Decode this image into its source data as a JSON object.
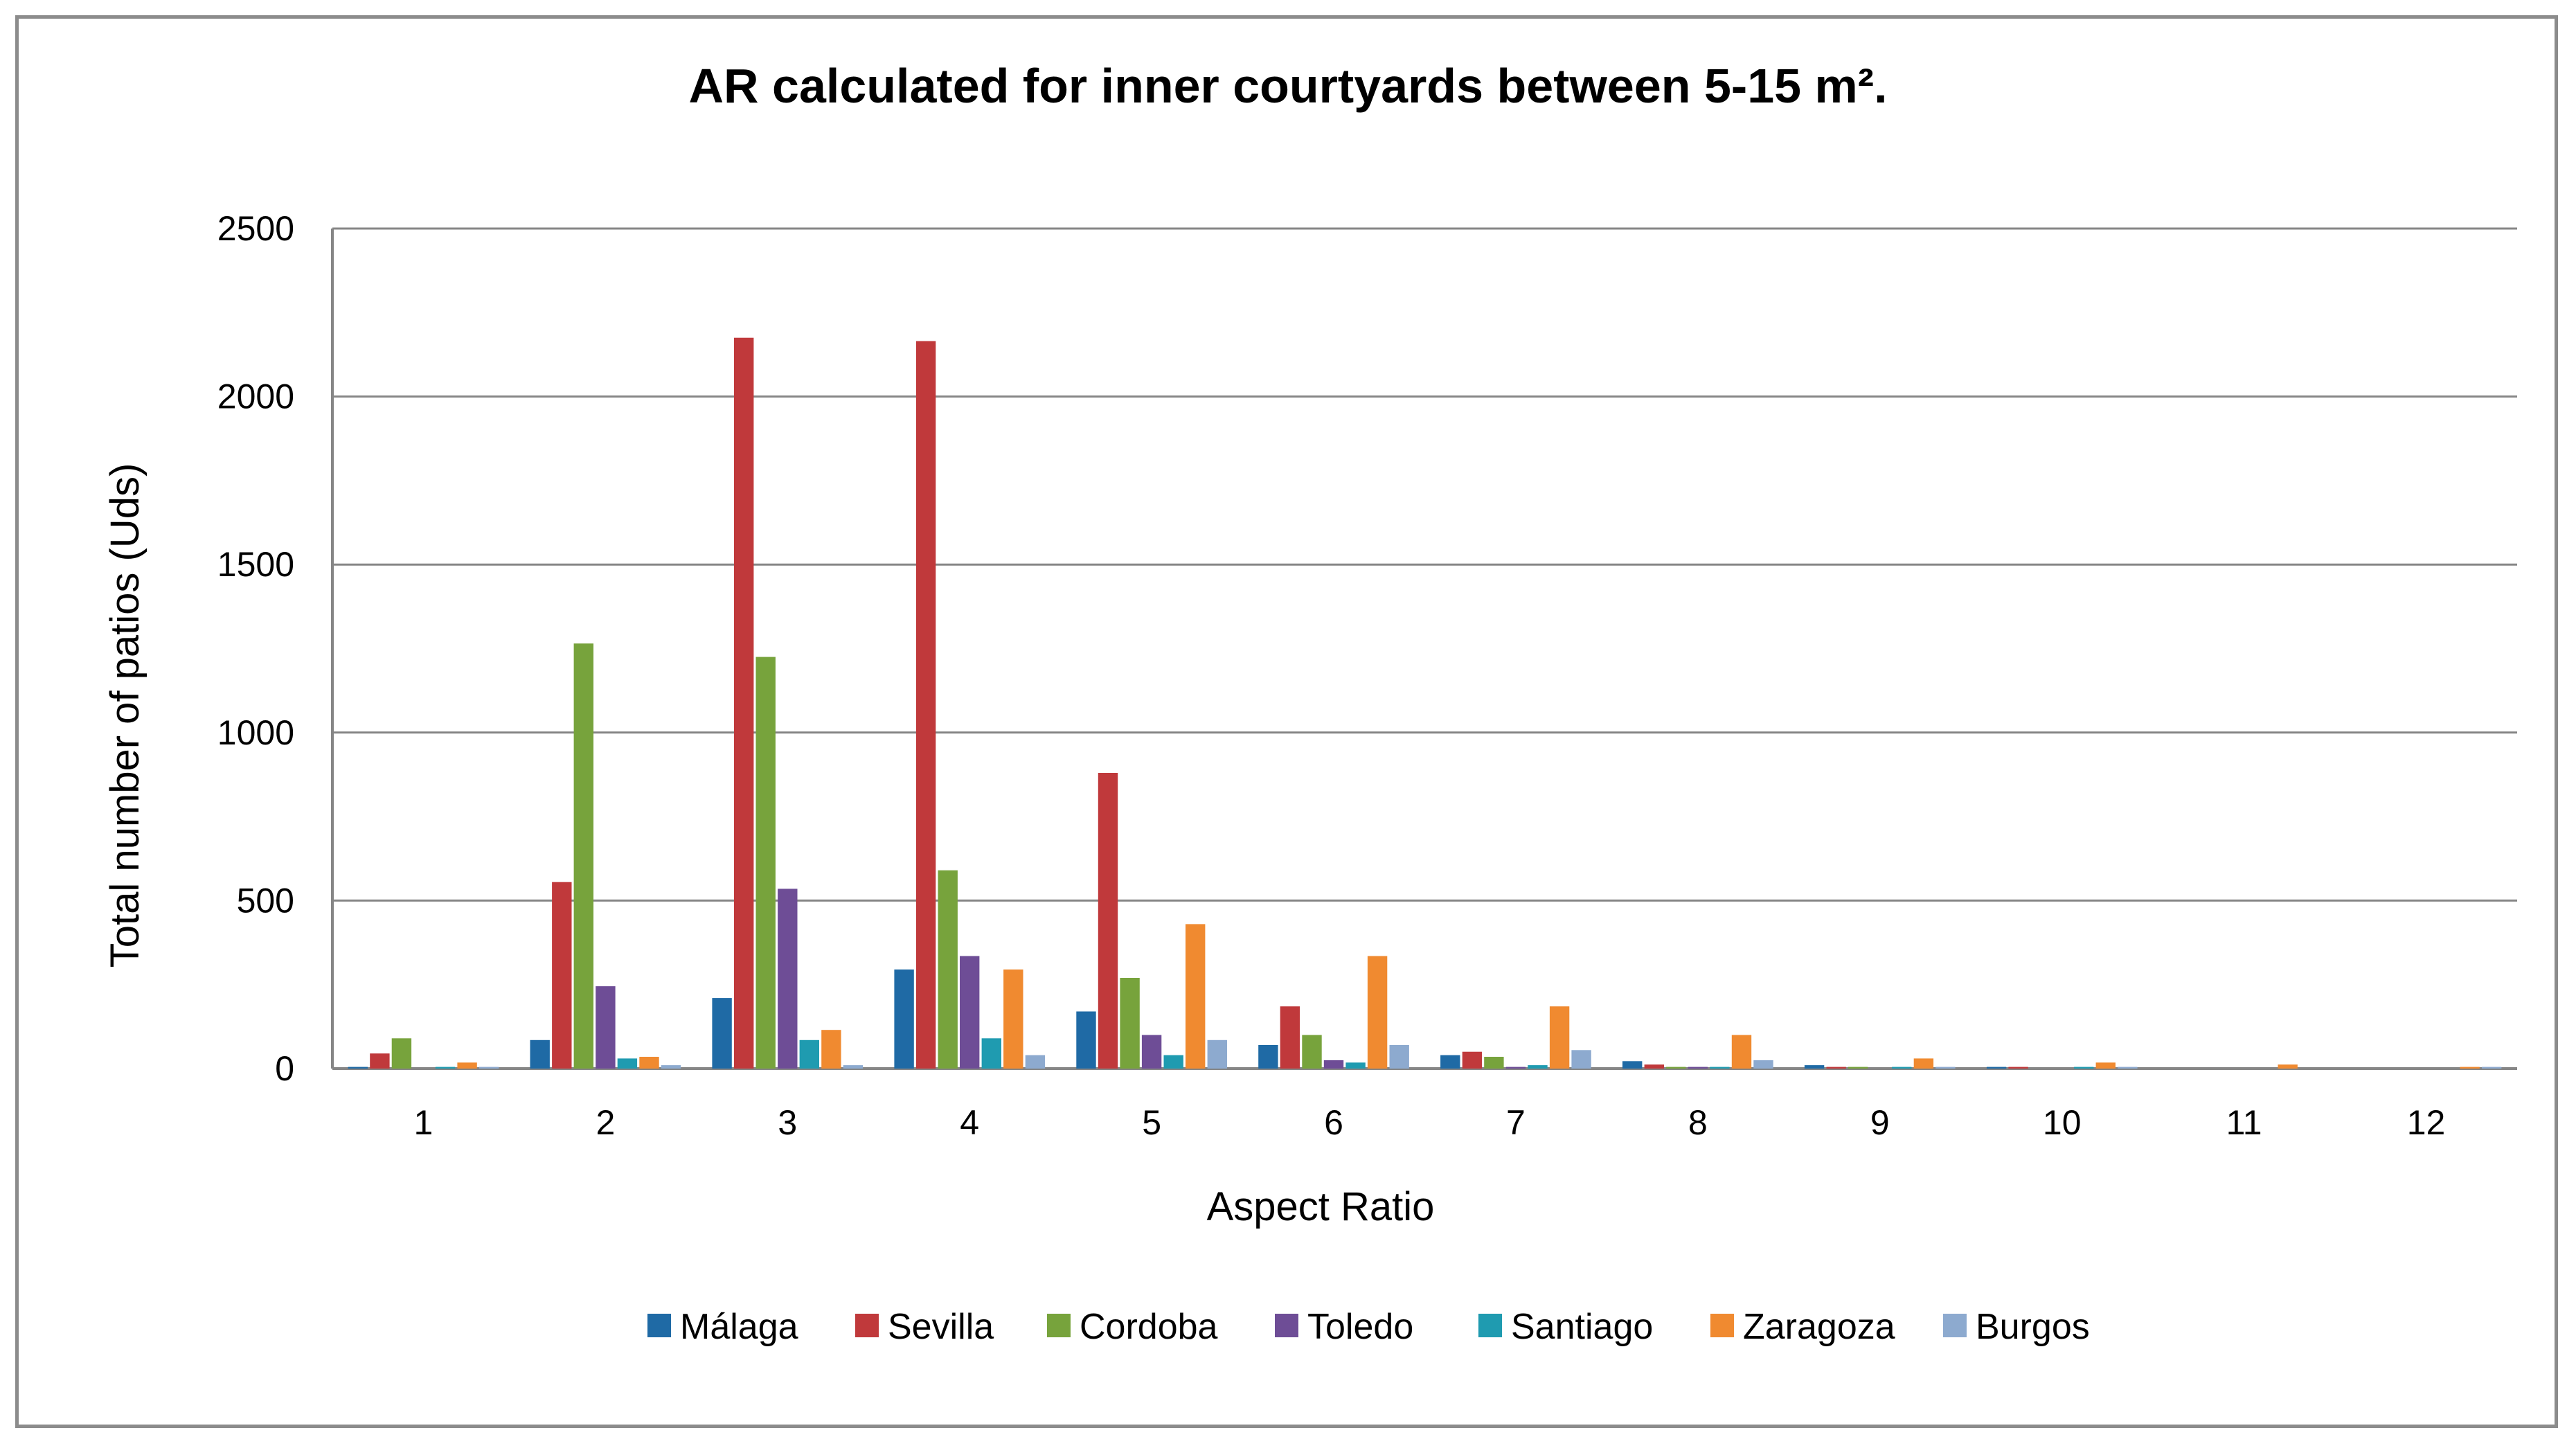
{
  "chart_data": {
    "type": "bar",
    "title": "AR calculated for inner courtyards between 5-15 m².",
    "xlabel": "Aspect Ratio",
    "ylabel": "Total number of patios (Uds)",
    "categories": [
      "1",
      "2",
      "3",
      "4",
      "5",
      "6",
      "7",
      "8",
      "9",
      "10",
      "11",
      "12"
    ],
    "ylim": [
      0,
      2500
    ],
    "yticks": [
      0,
      500,
      1000,
      1500,
      2000,
      2500
    ],
    "grid": true,
    "legend_position": "bottom",
    "series": [
      {
        "name": "Málaga",
        "color": "#1F6AA5",
        "values": [
          5,
          85,
          210,
          295,
          170,
          70,
          40,
          22,
          10,
          5,
          0,
          0
        ]
      },
      {
        "name": "Sevilla",
        "color": "#C0393B",
        "values": [
          45,
          555,
          2175,
          2165,
          880,
          185,
          50,
          12,
          5,
          5,
          0,
          0
        ]
      },
      {
        "name": "Cordoba",
        "color": "#77A33C",
        "values": [
          90,
          1265,
          1225,
          590,
          270,
          100,
          35,
          5,
          5,
          0,
          0,
          0
        ]
      },
      {
        "name": "Toledo",
        "color": "#6E4D96",
        "values": [
          0,
          245,
          535,
          335,
          100,
          25,
          5,
          5,
          0,
          0,
          0,
          0
        ]
      },
      {
        "name": "Santiago",
        "color": "#1F9BB0",
        "values": [
          5,
          30,
          85,
          90,
          40,
          18,
          10,
          5,
          5,
          5,
          0,
          0
        ]
      },
      {
        "name": "Zaragoza",
        "color": "#F08A30",
        "values": [
          18,
          35,
          115,
          295,
          430,
          335,
          185,
          100,
          30,
          18,
          12,
          5
        ]
      },
      {
        "name": "Burgos",
        "color": "#8DAACF",
        "values": [
          5,
          10,
          10,
          40,
          85,
          70,
          55,
          25,
          5,
          5,
          0,
          5
        ]
      }
    ]
  }
}
